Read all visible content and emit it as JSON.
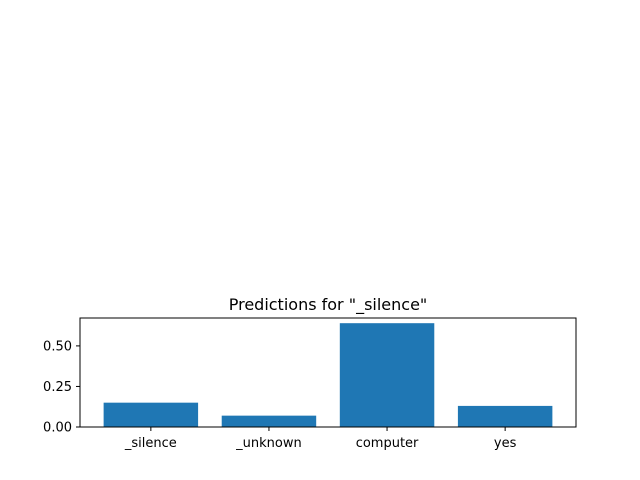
{
  "chart_data": {
    "type": "bar",
    "title": "Predictions for \"_silence\"",
    "categories": [
      "_silence",
      "_unknown",
      "computer",
      "yes"
    ],
    "values": [
      0.15,
      0.07,
      0.64,
      0.13
    ],
    "xlabel": "",
    "ylabel": "",
    "ylim": [
      0,
      0.672
    ],
    "yticks": [
      0.0,
      0.25,
      0.5
    ],
    "ytick_labels": [
      "0.00",
      "0.25",
      "0.50"
    ],
    "bar_color": "#1f77b4",
    "grid": false
  }
}
